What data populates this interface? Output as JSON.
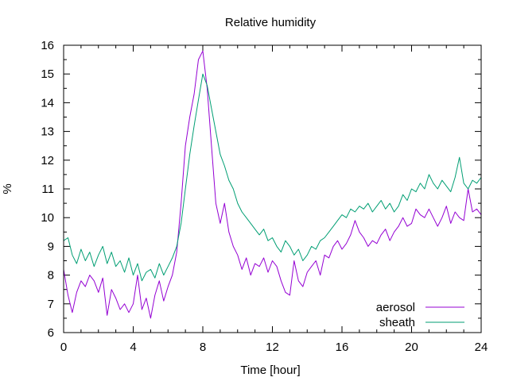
{
  "chart_data": {
    "type": "line",
    "title": "Relative humidity",
    "xlabel": "Time [hour]",
    "ylabel": "%",
    "xlim": [
      0,
      24
    ],
    "ylim": [
      6,
      16
    ],
    "xticks": [
      0,
      4,
      8,
      12,
      16,
      20,
      24
    ],
    "yticks": [
      6,
      7,
      8,
      9,
      10,
      11,
      12,
      13,
      14,
      15,
      16
    ],
    "xticks_minor_step": 1,
    "yticks_minor_step": 0.5,
    "grid": false,
    "legend_position": "bottom-right",
    "series": [
      {
        "name": "aerosol",
        "color": "#9400d3",
        "x": [
          0,
          0.25,
          0.5,
          0.75,
          1,
          1.25,
          1.5,
          1.75,
          2,
          2.25,
          2.5,
          2.75,
          3,
          3.25,
          3.5,
          3.75,
          4,
          4.25,
          4.5,
          4.75,
          5,
          5.25,
          5.5,
          5.75,
          6,
          6.25,
          6.5,
          6.75,
          7,
          7.25,
          7.5,
          7.75,
          8,
          8.25,
          8.5,
          8.75,
          9,
          9.25,
          9.5,
          9.75,
          10,
          10.25,
          10.5,
          10.75,
          11,
          11.25,
          11.5,
          11.75,
          12,
          12.25,
          12.5,
          12.75,
          13,
          13.25,
          13.5,
          13.75,
          14,
          14.25,
          14.5,
          14.75,
          15,
          15.25,
          15.5,
          15.75,
          16,
          16.25,
          16.5,
          16.75,
          17,
          17.25,
          17.5,
          17.75,
          18,
          18.25,
          18.5,
          18.75,
          19,
          19.25,
          19.5,
          19.75,
          20,
          20.25,
          20.5,
          20.75,
          21,
          21.25,
          21.5,
          21.75,
          22,
          22.25,
          22.5,
          22.75,
          23,
          23.25,
          23.5,
          23.75,
          24
        ],
        "y": [
          8.2,
          7.3,
          6.7,
          7.4,
          7.8,
          7.6,
          8.0,
          7.8,
          7.4,
          7.9,
          6.6,
          7.5,
          7.2,
          6.8,
          7.0,
          6.7,
          7.0,
          8.0,
          6.8,
          7.2,
          6.5,
          7.3,
          7.8,
          7.1,
          7.6,
          8.0,
          8.8,
          10.5,
          12.5,
          13.5,
          14.3,
          15.5,
          15.8,
          14.5,
          12.5,
          10.5,
          9.8,
          10.5,
          9.5,
          9.0,
          8.7,
          8.2,
          8.6,
          8.0,
          8.4,
          8.3,
          8.6,
          8.1,
          8.5,
          8.3,
          7.8,
          7.4,
          7.3,
          8.5,
          7.8,
          7.6,
          8.1,
          8.3,
          8.5,
          8.0,
          8.7,
          8.6,
          9.0,
          9.2,
          8.9,
          9.1,
          9.4,
          9.9,
          9.5,
          9.3,
          9.0,
          9.2,
          9.1,
          9.4,
          9.6,
          9.2,
          9.5,
          9.7,
          10.0,
          9.7,
          9.8,
          10.3,
          10.1,
          10.0,
          10.3,
          10.0,
          9.7,
          10.0,
          10.4,
          9.8,
          10.2,
          10.0,
          9.9,
          11.0,
          10.2,
          10.3,
          10.1
        ]
      },
      {
        "name": "sheath",
        "color": "#009e73",
        "x": [
          0,
          0.25,
          0.5,
          0.75,
          1,
          1.25,
          1.5,
          1.75,
          2,
          2.25,
          2.5,
          2.75,
          3,
          3.25,
          3.5,
          3.75,
          4,
          4.25,
          4.5,
          4.75,
          5,
          5.25,
          5.5,
          5.75,
          6,
          6.25,
          6.5,
          6.75,
          7,
          7.25,
          7.5,
          7.75,
          8,
          8.25,
          8.5,
          8.75,
          9,
          9.25,
          9.5,
          9.75,
          10,
          10.25,
          10.5,
          10.75,
          11,
          11.25,
          11.5,
          11.75,
          12,
          12.25,
          12.5,
          12.75,
          13,
          13.25,
          13.5,
          13.75,
          14,
          14.25,
          14.5,
          14.75,
          15,
          15.25,
          15.5,
          15.75,
          16,
          16.25,
          16.5,
          16.75,
          17,
          17.25,
          17.5,
          17.75,
          18,
          18.25,
          18.5,
          18.75,
          19,
          19.25,
          19.5,
          19.75,
          20,
          20.25,
          20.5,
          20.75,
          21,
          21.25,
          21.5,
          21.75,
          22,
          22.25,
          22.5,
          22.75,
          23,
          23.25,
          23.5,
          23.75,
          24
        ],
        "y": [
          9.2,
          9.3,
          8.7,
          8.4,
          8.9,
          8.5,
          8.8,
          8.3,
          8.7,
          9.0,
          8.4,
          8.8,
          8.3,
          8.5,
          8.1,
          8.6,
          8.0,
          8.4,
          7.8,
          8.1,
          8.2,
          7.9,
          8.4,
          8.0,
          8.3,
          8.6,
          9.0,
          9.8,
          11.0,
          12.2,
          13.2,
          14.1,
          15.0,
          14.6,
          13.8,
          13.0,
          12.2,
          11.8,
          11.3,
          11.0,
          10.5,
          10.2,
          10.0,
          9.8,
          9.6,
          9.4,
          9.6,
          9.2,
          9.3,
          9.0,
          8.8,
          9.2,
          9.0,
          8.7,
          8.9,
          8.5,
          8.7,
          9.0,
          8.9,
          9.2,
          9.3,
          9.5,
          9.7,
          9.9,
          10.1,
          10.0,
          10.3,
          10.2,
          10.4,
          10.3,
          10.5,
          10.2,
          10.4,
          10.6,
          10.3,
          10.5,
          10.2,
          10.4,
          10.8,
          10.6,
          11.0,
          10.9,
          11.2,
          11.0,
          11.5,
          11.2,
          11.0,
          11.3,
          11.1,
          10.9,
          11.4,
          12.1,
          11.2,
          11.0,
          11.3,
          11.2,
          11.4
        ]
      }
    ]
  }
}
